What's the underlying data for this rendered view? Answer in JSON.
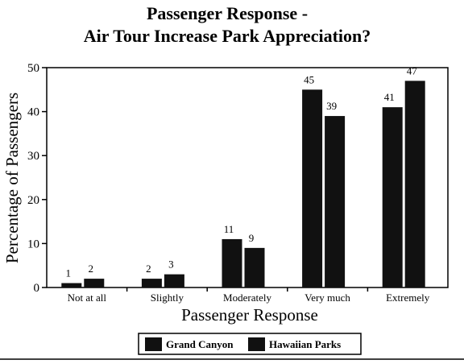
{
  "chart_data": {
    "type": "bar",
    "title": "Passenger Response -",
    "subtitle": "Air Tour Increase Park Appreciation?",
    "xlabel": "Passenger Response",
    "ylabel": "Percentage of Passengers",
    "categories": [
      "Not at all",
      "Slightly",
      "Moderately",
      "Very much",
      "Extremely"
    ],
    "series": [
      {
        "name": "Grand Canyon",
        "values": [
          1,
          2,
          11,
          45,
          41
        ],
        "labels": [
          "1",
          "2",
          "11",
          "45",
          "41"
        ]
      },
      {
        "name": "Hawaiian Parks",
        "values": [
          2,
          3,
          9,
          39,
          47
        ],
        "labels": [
          "2",
          "3",
          "9",
          "39",
          "47"
        ]
      }
    ],
    "ylim": [
      0,
      50
    ],
    "yticks": [
      0,
      10,
      20,
      30,
      40,
      50
    ],
    "ytick_labels": [
      "0",
      "10",
      "20",
      "30",
      "40",
      "50"
    ],
    "grid": false,
    "legend_position": "bottom",
    "colors": {
      "bars": "#111111",
      "axis": "#000000",
      "background": "#ffffff"
    }
  }
}
